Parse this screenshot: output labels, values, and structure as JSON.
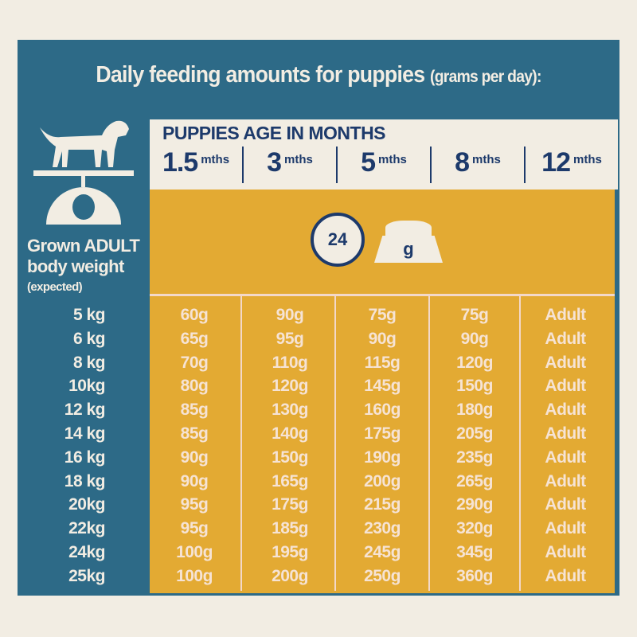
{
  "title": {
    "main": "Daily feeding amounts for puppies",
    "sub": "(grams per day):"
  },
  "header": {
    "title": "PUPPIES AGE IN MONTHS",
    "ages": [
      {
        "value": "1.5",
        "unit": "mths"
      },
      {
        "value": "3",
        "unit": "mths"
      },
      {
        "value": "5",
        "unit": "mths"
      },
      {
        "value": "8",
        "unit": "mths"
      },
      {
        "value": "12",
        "unit": "mths"
      }
    ]
  },
  "icons": {
    "clock_label": "24",
    "bowl_label": "g"
  },
  "left": {
    "line1": "Grown ADULT",
    "line2": "body weight",
    "line3": "(expected)"
  },
  "table": {
    "weights": [
      "5 kg",
      "6 kg",
      "8 kg",
      "10kg",
      "12 kg",
      "14 kg",
      "16 kg",
      "18 kg",
      "20kg",
      "22kg",
      "24kg",
      "25kg"
    ],
    "rows": [
      [
        "60g",
        "90g",
        "75g",
        "75g",
        "Adult"
      ],
      [
        "65g",
        "95g",
        "90g",
        "90g",
        "Adult"
      ],
      [
        "70g",
        "110g",
        "115g",
        "120g",
        "Adult"
      ],
      [
        "80g",
        "120g",
        "145g",
        "150g",
        "Adult"
      ],
      [
        "85g",
        "130g",
        "160g",
        "180g",
        "Adult"
      ],
      [
        "85g",
        "140g",
        "175g",
        "205g",
        "Adult"
      ],
      [
        "90g",
        "150g",
        "190g",
        "235g",
        "Adult"
      ],
      [
        "90g",
        "165g",
        "200g",
        "265g",
        "Adult"
      ],
      [
        "95g",
        "175g",
        "215g",
        "290g",
        "Adult"
      ],
      [
        "95g",
        "185g",
        "230g",
        "320g",
        "Adult"
      ],
      [
        "100g",
        "195g",
        "245g",
        "345g",
        "Adult"
      ],
      [
        "100g",
        "200g",
        "250g",
        "360g",
        "Adult"
      ]
    ]
  },
  "colors": {
    "blue": "#2d6a87",
    "navy": "#1d3a6b",
    "yellow": "#e3aa33",
    "cream": "#f2ede3"
  }
}
